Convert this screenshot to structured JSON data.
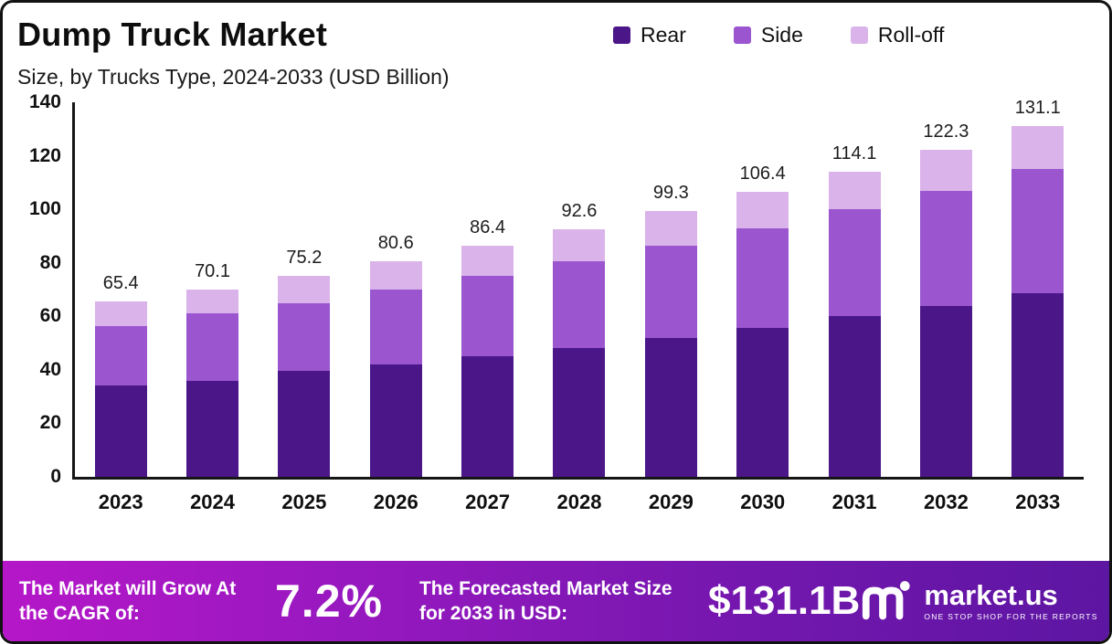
{
  "title": "Dump Truck Market",
  "subtitle": "Size, by Trucks Type, 2024-2033 (USD Billion)",
  "legend": [
    {
      "label": "Rear",
      "color": "#4a1688"
    },
    {
      "label": "Side",
      "color": "#9a55cf"
    },
    {
      "label": "Roll-off",
      "color": "#d9b3ea"
    }
  ],
  "chart_data": {
    "type": "bar",
    "stacked": true,
    "title": "Dump Truck Market Size, by Trucks Type, 2024-2033 (USD Billion)",
    "categories": [
      "2023",
      "2024",
      "2025",
      "2026",
      "2027",
      "2028",
      "2029",
      "2030",
      "2031",
      "2032",
      "2033"
    ],
    "series": [
      {
        "name": "Rear",
        "color": "#4a1688",
        "values": [
          34,
          36,
          39.5,
          42,
          45,
          48,
          52,
          55.5,
          60,
          64,
          68.5
        ]
      },
      {
        "name": "Side",
        "color": "#9a55cf",
        "values": [
          22.5,
          25,
          25.5,
          28,
          30,
          32.5,
          34.5,
          37.5,
          40,
          43,
          46.5
        ]
      },
      {
        "name": "Roll-off",
        "color": "#d9b3ea",
        "values": [
          8.9,
          9.1,
          10.2,
          10.6,
          11.4,
          12.1,
          12.8,
          13.4,
          14.1,
          15.3,
          16.1
        ]
      }
    ],
    "totals": [
      65.4,
      70.1,
      75.2,
      80.6,
      86.4,
      92.6,
      99.3,
      106.4,
      114.1,
      122.3,
      131.1
    ],
    "xlabel": "",
    "ylabel": "",
    "ylim": [
      0,
      140
    ],
    "yticks": [
      0,
      20,
      40,
      60,
      80,
      100,
      120,
      140
    ],
    "grid": false,
    "legend_position": "top-right"
  },
  "footer": {
    "cagr_label": "The Market will Grow At the CAGR of:",
    "cagr_value": "7.2%",
    "forecast_label": "The Forecasted Market Size for 2033 in USD:",
    "forecast_value": "$131.1B",
    "brand": "market.us",
    "brand_tagline": "ONE STOP SHOP FOR THE REPORTS"
  }
}
